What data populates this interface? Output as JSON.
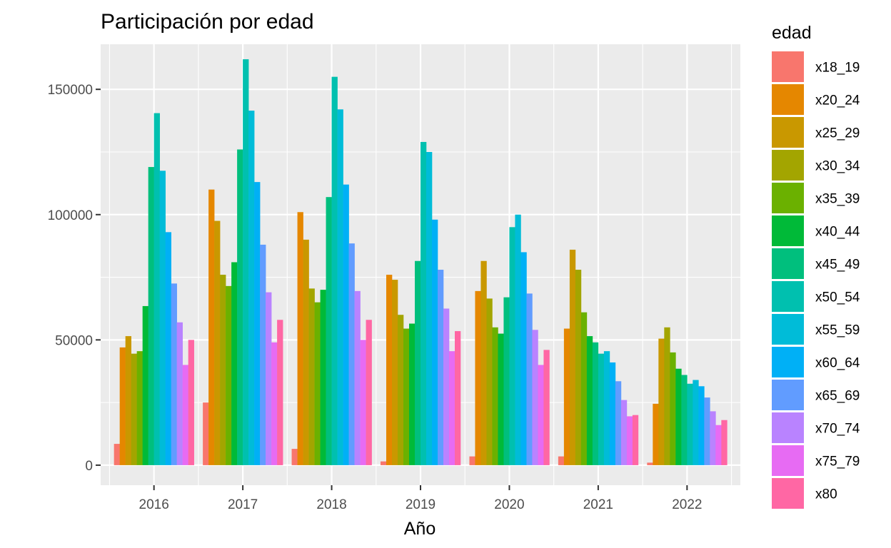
{
  "chart_data": {
    "type": "bar",
    "title": "Participación por edad",
    "xlabel": "Año",
    "ylabel": "",
    "categories": [
      "2016",
      "2017",
      "2018",
      "2019",
      "2020",
      "2021",
      "2022"
    ],
    "ylim": [
      -8000,
      168000
    ],
    "yticks": [
      0,
      50000,
      100000,
      150000
    ],
    "ytick_labels": [
      "0",
      "50000",
      "100000",
      "150000"
    ],
    "grid": true,
    "legend": {
      "title": "edad",
      "position": "right"
    },
    "series": [
      {
        "name": "x18_19",
        "color": "#F8766D",
        "values": [
          8500,
          25000,
          6500,
          1500,
          3500,
          3500,
          1000
        ]
      },
      {
        "name": "x20_24",
        "color": "#E58700",
        "values": [
          47000,
          110000,
          101000,
          76000,
          69500,
          54500,
          24500
        ]
      },
      {
        "name": "x25_29",
        "color": "#C99800",
        "values": [
          51500,
          97500,
          90000,
          74000,
          81500,
          86000,
          50500
        ]
      },
      {
        "name": "x30_34",
        "color": "#A3A500",
        "values": [
          44500,
          76000,
          70500,
          60000,
          66500,
          78000,
          55000
        ]
      },
      {
        "name": "x35_39",
        "color": "#6BB100",
        "values": [
          45500,
          71500,
          65000,
          54500,
          55000,
          61000,
          45000
        ]
      },
      {
        "name": "x40_44",
        "color": "#00BA38",
        "values": [
          63500,
          81000,
          70000,
          56500,
          52500,
          51500,
          38500
        ]
      },
      {
        "name": "x45_49",
        "color": "#00BF7D",
        "values": [
          119000,
          126000,
          107000,
          81500,
          67000,
          49000,
          36000
        ]
      },
      {
        "name": "x50_54",
        "color": "#00C0AF",
        "values": [
          140500,
          162000,
          155000,
          129000,
          95000,
          44500,
          32500
        ]
      },
      {
        "name": "x55_59",
        "color": "#00BCD8",
        "values": [
          117500,
          141500,
          142000,
          125000,
          100000,
          45500,
          34000
        ]
      },
      {
        "name": "x60_64",
        "color": "#00B0F6",
        "values": [
          93000,
          113000,
          112000,
          98000,
          85000,
          41000,
          31500
        ]
      },
      {
        "name": "x65_69",
        "color": "#619CFF",
        "values": [
          72500,
          88000,
          88500,
          78000,
          68500,
          33500,
          27000
        ]
      },
      {
        "name": "x70_74",
        "color": "#B983FF",
        "values": [
          57000,
          69000,
          69500,
          62500,
          54000,
          26000,
          21500
        ]
      },
      {
        "name": "x75_79",
        "color": "#E76BF3",
        "values": [
          40000,
          49000,
          50000,
          45500,
          40000,
          19500,
          16000
        ]
      },
      {
        "name": "x80",
        "color": "#FF67A4",
        "values": [
          50000,
          58000,
          58000,
          53500,
          46000,
          20000,
          18000
        ]
      }
    ]
  }
}
